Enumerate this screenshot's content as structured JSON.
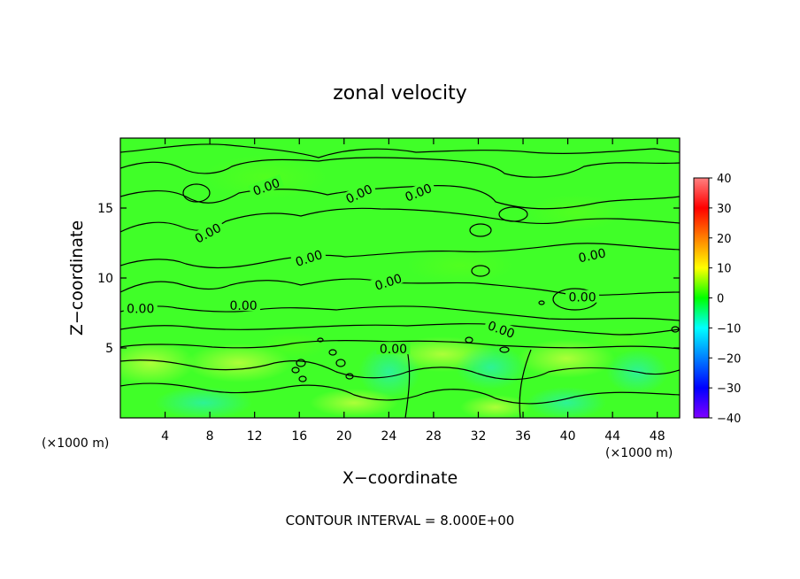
{
  "chart_data": {
    "type": "heatmap",
    "title": "zonal velocity",
    "xlabel": "X−coordinate",
    "ylabel": "Z−coordinate",
    "x_unit_left": "(×1000 m)",
    "x_unit_right": "(×1000 m)",
    "xlim": [
      0,
      50
    ],
    "ylim": [
      0,
      20
    ],
    "x_ticks": [
      4,
      8,
      12,
      16,
      20,
      24,
      28,
      32,
      36,
      40,
      44,
      48
    ],
    "y_ticks": [
      5,
      10,
      15
    ],
    "colorbar": {
      "min": -40,
      "max": 40,
      "ticks": [
        "40",
        "30",
        "20",
        "10",
        "0",
        "−10",
        "−20",
        "−30",
        "−40"
      ],
      "colors": [
        "#ff8080",
        "#ff0000",
        "#ff8000",
        "#ffff00",
        "#00ff00",
        "#00ffff",
        "#0080ff",
        "#0000ff",
        "#8000ff"
      ]
    },
    "field_value_range": [
      -4,
      4
    ],
    "contour_interval": 8,
    "contour_labels": [
      {
        "text": "0.00",
        "x": 13.1,
        "z": 16.4,
        "angle": -20
      },
      {
        "text": "0.00",
        "x": 21.4,
        "z": 15.9,
        "angle": -25
      },
      {
        "text": "0.00",
        "x": 26.7,
        "z": 16.0,
        "angle": -22
      },
      {
        "text": "0.00",
        "x": 7.9,
        "z": 13.1,
        "angle": -28
      },
      {
        "text": "0.00",
        "x": 16.9,
        "z": 11.3,
        "angle": -18
      },
      {
        "text": "0.00",
        "x": 42.2,
        "z": 11.5,
        "angle": -12
      },
      {
        "text": "0.00",
        "x": 24.0,
        "z": 9.6,
        "angle": -18
      },
      {
        "text": "0.00",
        "x": 41.3,
        "z": 8.5,
        "angle": 0
      },
      {
        "text": "0.00",
        "x": 1.8,
        "z": 7.7,
        "angle": 0
      },
      {
        "text": "0.00",
        "x": 11.0,
        "z": 7.9,
        "angle": 0
      },
      {
        "text": "0.00",
        "x": 34.0,
        "z": 6.2,
        "angle": 20
      },
      {
        "text": "0.00",
        "x": 24.4,
        "z": 4.8,
        "angle": 0
      }
    ],
    "footer": "CONTOUR INTERVAL = 8.000E+00"
  }
}
